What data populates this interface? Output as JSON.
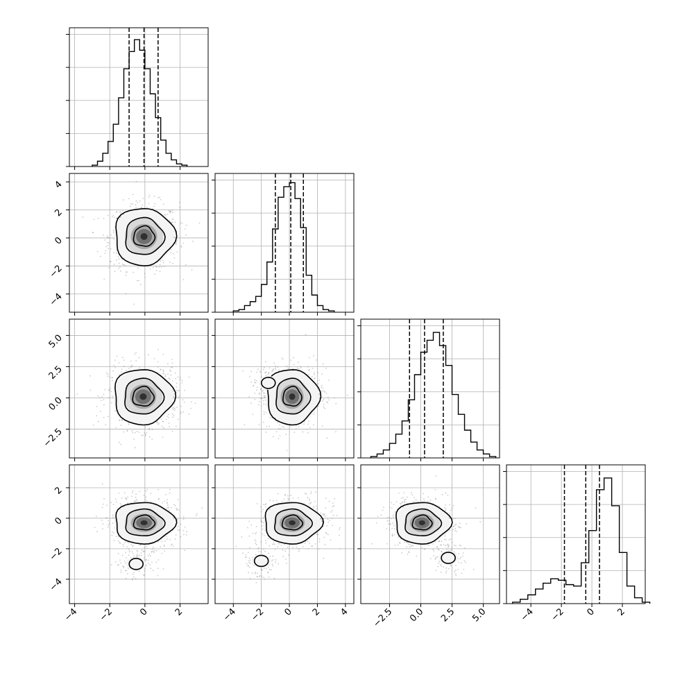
{
  "chart_data": {
    "type": "corner",
    "parameters": 4,
    "grid_lines": true,
    "ticks": {
      "p1": {
        "values": [
          -4,
          -2,
          0,
          2
        ],
        "labels": [
          "−4",
          "−2",
          "0",
          "2"
        ]
      },
      "p2": {
        "values": [
          -4,
          -2,
          0,
          2,
          4
        ],
        "labels": [
          "−4",
          "−2",
          "0",
          "2",
          "4"
        ]
      },
      "p3": {
        "values": [
          -2.5,
          0.0,
          2.5,
          5.0
        ],
        "labels": [
          "−2.5",
          "0.0",
          "2.5",
          "5.0"
        ]
      },
      "p4": {
        "values": [
          -4,
          -2,
          0,
          2
        ],
        "labels": [
          "−4",
          "−2",
          "0",
          "2"
        ]
      }
    },
    "ranges": {
      "p1": [
        -4.3,
        3.6
      ],
      "p2": [
        -5.3,
        4.6
      ],
      "p3": [
        -4.8,
        6.3
      ],
      "p4": [
        -5.6,
        3.5
      ]
    },
    "histograms": [
      {
        "param": "p1",
        "edges_start": -3.0,
        "bin_width": 0.3,
        "counts": [
          1,
          4,
          10,
          19,
          32,
          52,
          74,
          87,
          96,
          88,
          74,
          55,
          37,
          20,
          10,
          5,
          2,
          1
        ],
        "ymax": 105,
        "quantiles": [
          -0.9,
          -0.05,
          0.75
        ]
      },
      {
        "param": "p2",
        "edges_start": -4.0,
        "bin_width": 0.4,
        "counts": [
          1,
          2,
          5,
          8,
          12,
          21,
          38,
          63,
          87,
          95,
          98,
          86,
          64,
          28,
          13,
          5,
          2,
          1
        ],
        "ymax": 105,
        "quantiles": [
          -1.0,
          0.1,
          1.0
        ]
      },
      {
        "param": "p3",
        "edges_start": -4.0,
        "bin_width": 0.5,
        "counts": [
          1,
          3,
          6,
          11,
          18,
          28,
          44,
          63,
          80,
          89,
          95,
          85,
          70,
          48,
          33,
          21,
          12,
          6,
          3,
          1
        ],
        "ymax": 105,
        "quantiles": [
          -0.9,
          0.3,
          1.8
        ]
      },
      {
        "param": "p4",
        "edges_start": -5.2,
        "bin_width": 0.5,
        "counts": [
          1,
          3,
          6,
          10,
          14,
          17,
          16,
          13,
          12,
          28,
          50,
          78,
          86,
          67,
          35,
          12,
          4,
          1
        ],
        "ymax": 95,
        "quantiles": [
          -1.8,
          -0.4,
          0.5
        ]
      }
    ],
    "joint": [
      {
        "x": "p1",
        "y": "p2",
        "center": [
          -0.05,
          0.1
        ],
        "spread": [
          1.0,
          1.2
        ],
        "tail": null,
        "levels": [
          0.6,
          1.1,
          1.7
        ]
      },
      {
        "x": "p1",
        "y": "p3",
        "center": [
          -0.1,
          0.1
        ],
        "spread": [
          1.0,
          1.3
        ],
        "tail": null,
        "levels": [
          0.6,
          1.1,
          1.7
        ]
      },
      {
        "x": "p2",
        "y": "p3",
        "center": [
          0.2,
          0.1
        ],
        "spread": [
          1.1,
          1.3
        ],
        "tail": [
          -1.5,
          1.2
        ],
        "levels": [
          0.6,
          1.1,
          1.7
        ]
      },
      {
        "x": "p1",
        "y": "p4",
        "center": [
          -0.05,
          -0.3
        ],
        "spread": [
          1.0,
          0.8
        ],
        "tail": [
          -0.5,
          -3.0
        ],
        "levels": [
          0.6,
          1.1,
          1.7
        ]
      },
      {
        "x": "p2",
        "y": "p4",
        "center": [
          0.2,
          -0.3
        ],
        "spread": [
          1.2,
          0.8
        ],
        "tail": [
          -2.0,
          -2.8
        ],
        "levels": [
          0.6,
          1.1,
          1.7
        ]
      },
      {
        "x": "p3",
        "y": "p4",
        "center": [
          0.1,
          -0.3
        ],
        "spread": [
          1.3,
          0.8
        ],
        "tail": [
          2.2,
          -2.6
        ],
        "levels": [
          0.6,
          1.1,
          1.7
        ]
      }
    ]
  }
}
